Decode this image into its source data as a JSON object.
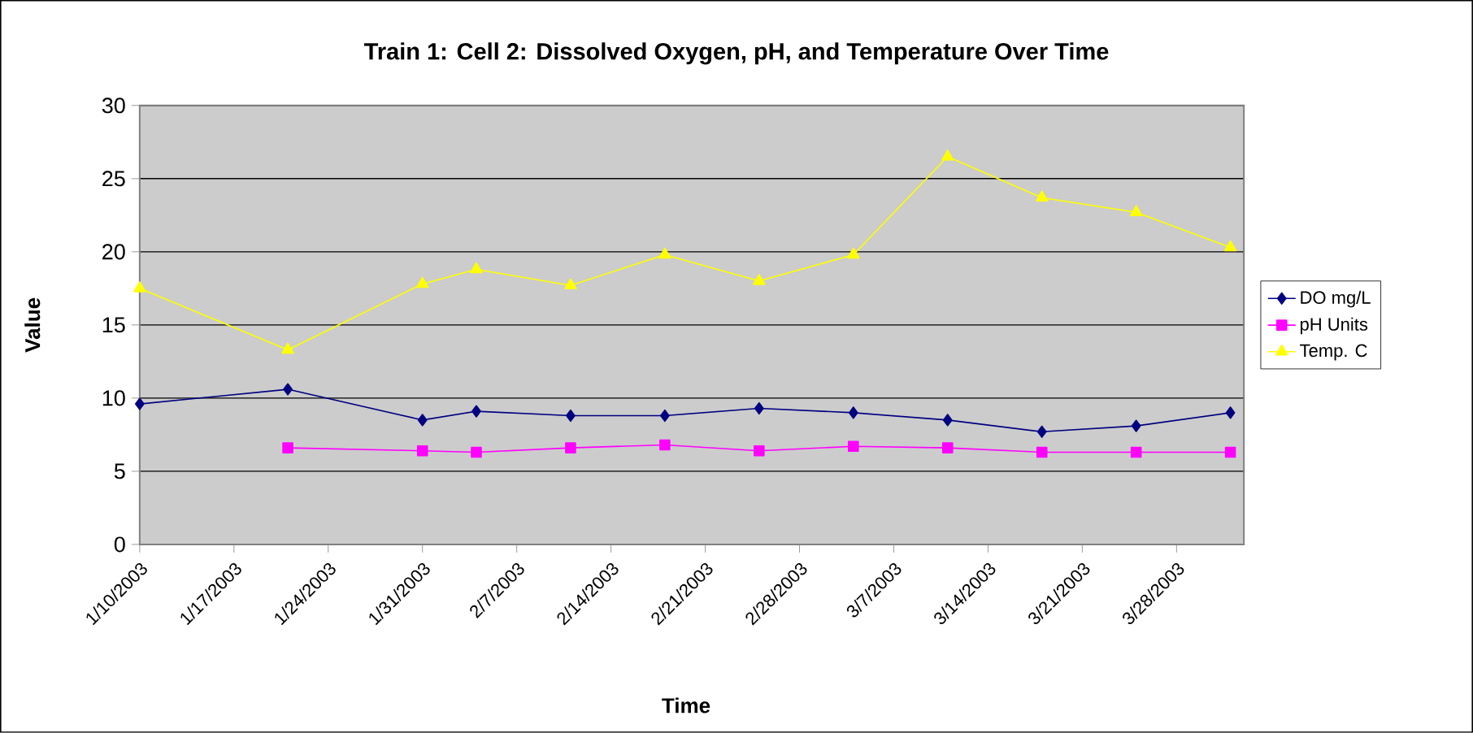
{
  "chart_data": {
    "type": "line",
    "title": "Train 1: Cell 2: Dissolved Oxygen, pH, and Temperature Over Time",
    "xlabel": "Time",
    "ylabel": "Value",
    "x": [
      "2003-01-10",
      "2003-01-21",
      "2003-01-31",
      "2003-02-04",
      "2003-02-11",
      "2003-02-18",
      "2003-02-25",
      "2003-03-04",
      "2003-03-11",
      "2003-03-18",
      "2003-03-25",
      "2003-04-01"
    ],
    "series": [
      {
        "name": "DO mg/L",
        "color": "#000080",
        "marker": "diamond",
        "values": [
          9.6,
          10.6,
          8.5,
          9.1,
          8.8,
          8.8,
          9.3,
          9.0,
          8.5,
          7.7,
          8.1,
          9.0
        ]
      },
      {
        "name": "pH Units",
        "color": "#ff00ff",
        "marker": "square",
        "values": [
          null,
          6.6,
          6.4,
          6.3,
          6.6,
          6.8,
          6.4,
          6.7,
          6.6,
          6.3,
          6.3,
          6.3
        ]
      },
      {
        "name": "Temp. C",
        "color": "#ffff00",
        "marker": "triangle",
        "values": [
          17.5,
          13.3,
          17.8,
          18.8,
          17.7,
          19.8,
          18.0,
          19.8,
          26.5,
          23.7,
          22.7,
          20.3
        ]
      }
    ],
    "xlim": [
      "2003-01-10",
      "2003-04-02"
    ],
    "xticks": [
      {
        "value": "2003-01-10",
        "label": "1/10/2003"
      },
      {
        "value": "2003-01-17",
        "label": "1/17/2003"
      },
      {
        "value": "2003-01-24",
        "label": "1/24/2003"
      },
      {
        "value": "2003-01-31",
        "label": "1/31/2003"
      },
      {
        "value": "2003-02-07",
        "label": "2/7/2003"
      },
      {
        "value": "2003-02-14",
        "label": "2/14/2003"
      },
      {
        "value": "2003-02-21",
        "label": "2/21/2003"
      },
      {
        "value": "2003-02-28",
        "label": "2/28/2003"
      },
      {
        "value": "2003-03-07",
        "label": "3/7/2003"
      },
      {
        "value": "2003-03-14",
        "label": "3/14/2003"
      },
      {
        "value": "2003-03-21",
        "label": "3/21/2003"
      },
      {
        "value": "2003-03-28",
        "label": "3/28/2003"
      }
    ],
    "ylim": [
      0,
      30
    ],
    "yticks": [
      0,
      5,
      10,
      15,
      20,
      25,
      30
    ],
    "grid": "y",
    "legend": "right",
    "line_style": "solid"
  }
}
